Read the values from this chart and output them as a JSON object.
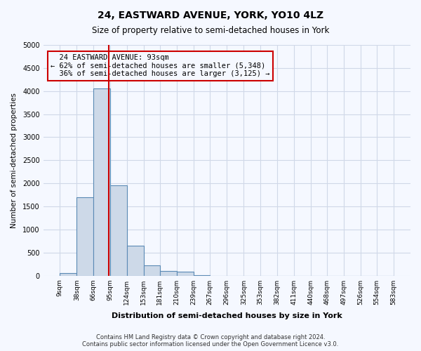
{
  "title": "24, EASTWARD AVENUE, YORK, YO10 4LZ",
  "subtitle": "Size of property relative to semi-detached houses in York",
  "xlabel": "Distribution of semi-detached houses by size in York",
  "ylabel": "Number of semi-detached properties",
  "property_size": 93,
  "property_label": "24 EASTWARD AVENUE: 93sqm",
  "smaller_pct": 62,
  "smaller_count": 5348,
  "larger_pct": 36,
  "larger_count": 3125,
  "bin_edges": [
    9,
    38,
    66,
    95,
    124,
    153,
    181,
    210,
    239,
    267,
    296,
    325,
    353,
    382,
    411,
    440,
    468,
    497,
    526,
    554,
    583
  ],
  "bin_counts": [
    50,
    1700,
    4050,
    1950,
    650,
    225,
    100,
    80,
    10,
    0,
    0,
    0,
    0,
    0,
    0,
    0,
    0,
    0,
    0,
    0
  ],
  "bar_facecolor": "#cdd9e8",
  "bar_edgecolor": "#5b8ab5",
  "redline_color": "#cc0000",
  "annotation_box_color": "#cc0000",
  "grid_color": "#d0d8e8",
  "ylim": [
    0,
    5000
  ],
  "yticks": [
    0,
    500,
    1000,
    1500,
    2000,
    2500,
    3000,
    3500,
    4000,
    4500,
    5000
  ],
  "footnote": "Contains HM Land Registry data © Crown copyright and database right 2024.\nContains public sector information licensed under the Open Government Licence v3.0.",
  "bg_color": "#f5f8ff"
}
